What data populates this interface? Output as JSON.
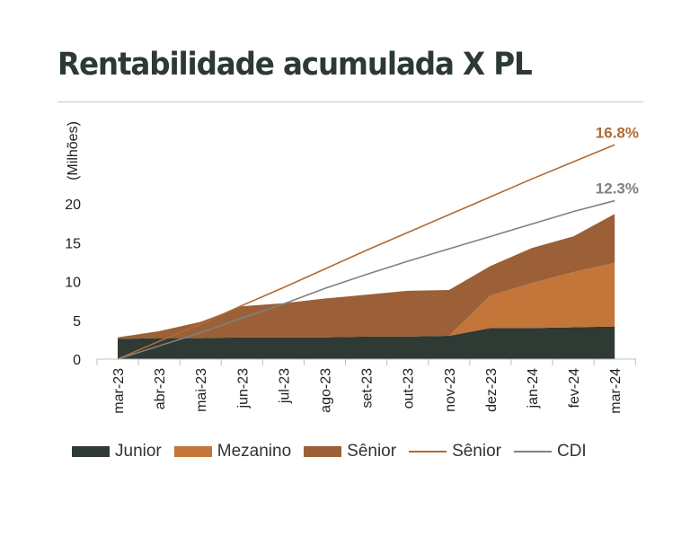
{
  "title": "Rentabilidade acumulada X PL",
  "chart_data": {
    "type": "area",
    "ylabel": "(Milhões)",
    "ylim": [
      0,
      25
    ],
    "yticks": [
      0,
      5,
      10,
      15,
      20
    ],
    "categories": [
      "mar-23",
      "abr-23",
      "mai-23",
      "jun-23",
      "jul-23",
      "ago-23",
      "set-23",
      "out-23",
      "nov-23",
      "dez-23",
      "jan-24",
      "fev-24",
      "mar-24"
    ],
    "stacked_areas": [
      {
        "name": "Junior",
        "color": "#2e3a33",
        "values": [
          2.6,
          2.7,
          2.7,
          2.8,
          2.8,
          2.8,
          2.9,
          2.9,
          3.0,
          4.0,
          4.0,
          4.1,
          4.2
        ]
      },
      {
        "name": "Mezanino",
        "color": "#c47539",
        "values": [
          0,
          0,
          0,
          0,
          0,
          0,
          0,
          0,
          0,
          4.2,
          5.8,
          7.1,
          8.2
        ]
      },
      {
        "name": "Sênior",
        "color": "#9b6037",
        "values": [
          0.2,
          0.9,
          2.1,
          4.0,
          4.4,
          5.0,
          5.4,
          5.9,
          5.9,
          3.8,
          4.5,
          4.6,
          6.3
        ]
      }
    ],
    "lines": [
      {
        "name": "Sênior",
        "color": "#b06a34",
        "values": [
          0,
          2.3,
          4.5,
          6.9,
          9.2,
          11.6,
          14.0,
          16.3,
          18.6,
          20.9,
          23.2,
          25.4,
          27.6
        ],
        "end_label": "16.8%"
      },
      {
        "name": "CDI",
        "color": "#808080",
        "values": [
          0,
          1.7,
          3.4,
          5.3,
          7.1,
          9.1,
          10.9,
          12.6,
          14.2,
          15.8,
          17.4,
          19.0,
          20.4
        ],
        "end_label": "12.3%"
      }
    ],
    "legend_position": "bottom",
    "grid": false
  }
}
